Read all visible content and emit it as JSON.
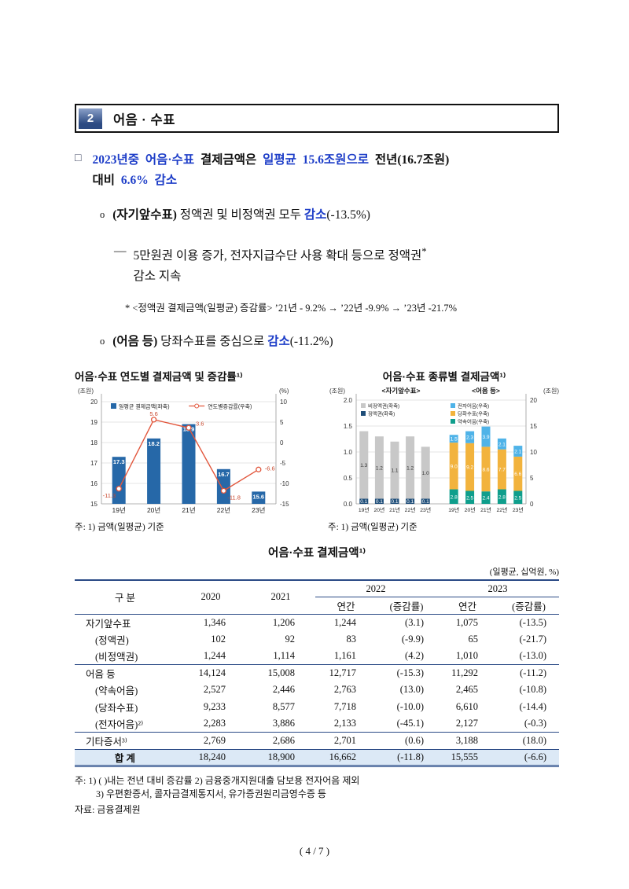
{
  "colors": {
    "emphasis_blue": "#1e3ec8",
    "table_line": "#2a4a85",
    "total_row_bg": "#dce9f6",
    "bar_blue": "#2668a8",
    "line_red": "#e2573d"
  },
  "header": {
    "number": "2",
    "title": "어음 · 수표"
  },
  "intro": {
    "marker": "□",
    "seg1": "2023년중 어음·수표",
    "seg2": " 결제금액은 ",
    "seg3": "일평균 15.6조원으로",
    "seg4": " 전년(16.7조원)",
    "seg5": "대비 ",
    "seg6": "6.6% 감소"
  },
  "bullet_cashier": {
    "marker": "o",
    "b1": "(자기앞수표)",
    "t1": " 정액권 및 비정액권 모두 ",
    "b2": "감소",
    "t2": "(-13.5%)"
  },
  "dash_item": {
    "marker": "―",
    "line1": "5만원권 이용 증가, 전자지급수단 사용 확대 등으로 정액권",
    "sup": "*",
    "line2": "감소 지속"
  },
  "footnote": "* <정액권 결제금액(일평균) 증감률> ’21년 - 9.2% → ’22년 -9.9% → ’23년 -21.7%",
  "bullet_bills": {
    "marker": "o",
    "b1": "(어음 등)",
    "t1": " 당좌수표를 중심으로 ",
    "b2": "감소",
    "t2": "(-11.2%)"
  },
  "chart_data": [
    {
      "type": "bar+line",
      "title": "어음·수표 연도별 결제금액 및 증감률¹⁾",
      "unit_left": "(조원)",
      "unit_right": "(%)",
      "categories": [
        "19년",
        "20년",
        "21년",
        "22년",
        "23년"
      ],
      "series": [
        {
          "name": "일평균 결제금액(좌축)",
          "type": "bar",
          "axis": "left",
          "color": "#2668a8",
          "values": [
            17.3,
            18.2,
            18.9,
            16.7,
            15.6
          ]
        },
        {
          "name": "연도별증감률(우축)",
          "type": "line",
          "axis": "right",
          "color": "#e2573d",
          "values": [
            -11.3,
            5.6,
            3.6,
            -11.8,
            -6.6
          ]
        }
      ],
      "ylim_left": [
        15,
        20
      ],
      "yticks_left": [
        15,
        16,
        17,
        18,
        19,
        20
      ],
      "ylim_right": [
        -15,
        10
      ],
      "yticks_right": [
        -15,
        -10,
        -5,
        0,
        5,
        10
      ],
      "grid": true,
      "legend_position": "top",
      "note": "주: 1) 금액(일평균) 기준"
    },
    {
      "type": "stacked-bar-2panel",
      "title": "어음·수표 종류별 결제금액¹⁾",
      "unit_left": "(조원)",
      "unit_right": "(조원)",
      "categories": [
        "19년",
        "20년",
        "21년",
        "22년",
        "23년"
      ],
      "panelA": {
        "label": "<자기앞수표>",
        "ylim": [
          0,
          2
        ],
        "yticks": [
          "0.0",
          "0.5",
          "1.0",
          "1.5",
          "2.0"
        ],
        "series": [
          {
            "name": "정액권(좌축)",
            "color": "#1f4e79",
            "values": [
              0.1,
              0.1,
              0.1,
              0.1,
              0.1
            ]
          },
          {
            "name": "비정액권(좌축)",
            "color": "#c8c8c8",
            "values": [
              1.3,
              1.2,
              1.1,
              1.2,
              1.0
            ]
          }
        ],
        "legend_order": [
          "비정액권(좌축)",
          "정액권(좌축)"
        ]
      },
      "panelB": {
        "label": "<어음 등>",
        "ylim": [
          0,
          20
        ],
        "yticks": [
          "0",
          "5",
          "10",
          "15",
          "20"
        ],
        "series": [
          {
            "name": "약속어음(우축)",
            "color": "#0f9e8c",
            "values": [
              2.8,
              2.5,
              2.4,
              2.8,
              2.5
            ]
          },
          {
            "name": "당좌수표(우축)",
            "color": "#f2b33d",
            "values": [
              9.0,
              9.2,
              8.6,
              7.7,
              6.6
            ]
          },
          {
            "name": "전자어음(우축)",
            "color": "#4fb3e8",
            "values": [
              1.5,
              2.3,
              3.9,
              2.1,
              2.1
            ]
          }
        ],
        "legend_order": [
          "전자어음(우축)",
          "당좌수표(우축)",
          "약속어음(우축)"
        ]
      },
      "grid": true,
      "note": "주: 1) 금액(일평균) 기준"
    }
  ],
  "table": {
    "title": "어음·수표 결제금액¹⁾",
    "unit": "(일평균, 십억원, %)",
    "col_label": "구 분",
    "col_2020": "2020",
    "col_2021": "2021",
    "grp_2022": "2022",
    "grp_2023": "2023",
    "sub": [
      "연간",
      "(증감률)"
    ],
    "rows": [
      {
        "label": "자기앞수표",
        "cells": [
          "1,346",
          "1,206",
          "1,244",
          "(3.1)",
          "1,075",
          "(-13.5)"
        ]
      },
      {
        "label": "(정액권)",
        "indent": true,
        "cells": [
          "102",
          "92",
          "83",
          "(-9.9)",
          "65",
          "(-21.7)"
        ]
      },
      {
        "label": "(비정액권)",
        "indent": true,
        "cells": [
          "1,244",
          "1,114",
          "1,161",
          "(4.2)",
          "1,010",
          "(-13.0)"
        ]
      },
      {
        "label": "어음 등",
        "sep": true,
        "cells": [
          "14,124",
          "15,008",
          "12,717",
          "(-15.3)",
          "11,292",
          "(-11.2)"
        ]
      },
      {
        "label": "(약속어음)",
        "indent": true,
        "cells": [
          "2,527",
          "2,446",
          "2,763",
          "(13.0)",
          "2,465",
          "(-10.8)"
        ]
      },
      {
        "label": "(당좌수표)",
        "indent": true,
        "cells": [
          "9,233",
          "8,577",
          "7,718",
          "(-10.0)",
          "6,610",
          "(-14.4)"
        ]
      },
      {
        "label": "(전자어음)²⁾",
        "indent": true,
        "cells": [
          "2,283",
          "3,886",
          "2,133",
          "(-45.1)",
          "2,127",
          "(-0.3)"
        ]
      },
      {
        "label": "기타증서³⁾",
        "sep": true,
        "cells": [
          "2,769",
          "2,686",
          "2,701",
          "(0.6)",
          "3,188",
          "(18.0)"
        ]
      },
      {
        "label": "합 계",
        "total": true,
        "cells": [
          "18,240",
          "18,900",
          "16,662",
          "(-11.8)",
          "15,555",
          "(-6.6)"
        ]
      }
    ]
  },
  "notes": {
    "line1": "주: 1) (  )내는 전년 대비 증감률 2) 금융중개지원대출 담보용 전자어음 제외",
    "line2": "3) 우편환증서, 콜자금결제통지서, 유가증권원리금영수증 등",
    "source": "자료: 금융결제원"
  },
  "page_number": "( 4 / 7 )"
}
